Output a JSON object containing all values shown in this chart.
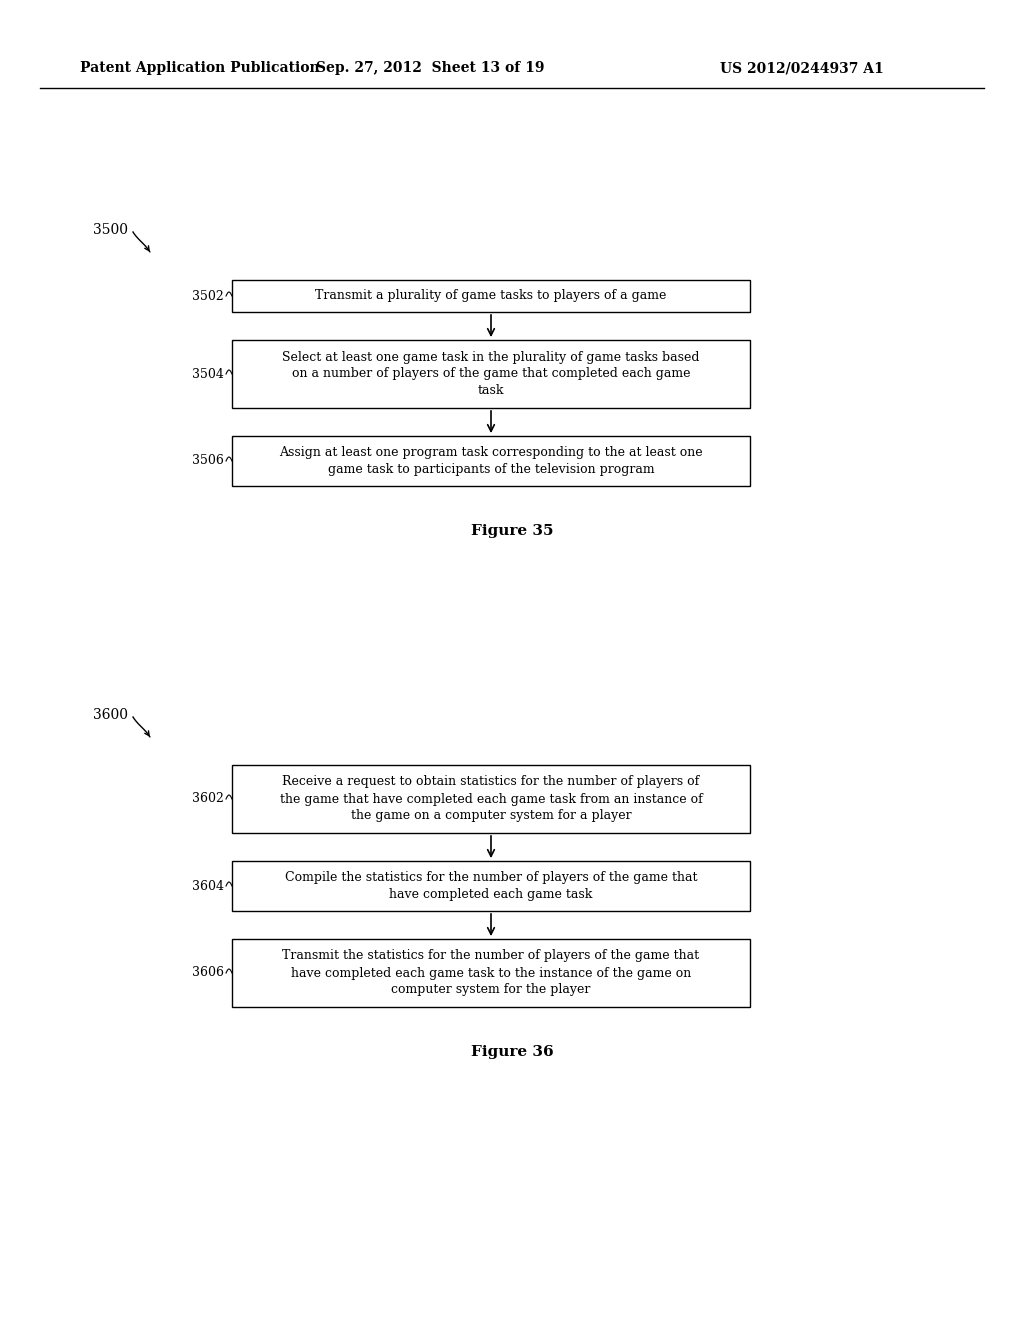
{
  "header_left": "Patent Application Publication",
  "header_mid": "Sep. 27, 2012  Sheet 13 of 19",
  "header_right": "US 2012/0244937 A1",
  "bg_color": "#ffffff",
  "fig35": {
    "label": "3500",
    "figure_caption": "Figure 35",
    "boxes": [
      {
        "label": "3502",
        "text": "Transmit a plurality of game tasks to players of a game",
        "lines": 1
      },
      {
        "label": "3504",
        "text": "Select at least one game task in the plurality of game tasks based\non a number of players of the game that completed each game\ntask",
        "lines": 3
      },
      {
        "label": "3506",
        "text": "Assign at least one program task corresponding to the at least one\ngame task to participants of the television program",
        "lines": 2
      }
    ]
  },
  "fig36": {
    "label": "3600",
    "figure_caption": "Figure 36",
    "boxes": [
      {
        "label": "3602",
        "text": "Receive a request to obtain statistics for the number of players of\nthe game that have completed each game task from an instance of\nthe game on a computer system for a player",
        "lines": 3
      },
      {
        "label": "3604",
        "text": "Compile the statistics for the number of players of the game that\nhave completed each game task",
        "lines": 2
      },
      {
        "label": "3606",
        "text": "Transmit the statistics for the number of players of the game that\nhave completed each game task to the instance of the game on\ncomputer system for the player",
        "lines": 3
      }
    ]
  }
}
